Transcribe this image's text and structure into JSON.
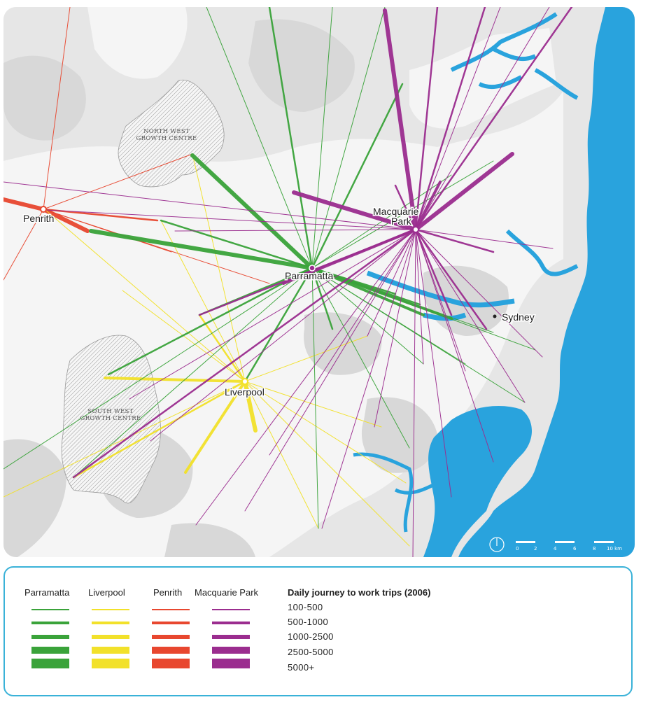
{
  "colors": {
    "parramatta": "#3aa33a",
    "liverpool": "#f2e12a",
    "penrith": "#e8472f",
    "macquarie_park": "#9b2d8f",
    "water": "#29a3dd",
    "land": "#f4f4f4",
    "urban": "#d9d9d9",
    "legend_border": "#3ab2d8"
  },
  "map": {
    "labels": {
      "penrith": "Penrith",
      "parramatta": "Parramatta",
      "liverpool": "Liverpool",
      "macquarie_line1": "Macquarie",
      "macquarie_line2": "Park",
      "sydney": "Sydney"
    },
    "zones": {
      "north_west_line1": "NORTH WEST",
      "north_west_line2": "GROWTH CENTRE",
      "south_west_line1": "SOUTH WEST",
      "south_west_line2": "GROWTH CENTRE"
    },
    "scale_bar": {
      "ticks": [
        "0",
        "2",
        "4",
        "6",
        "8",
        "10 km"
      ],
      "north_icon": "north-arrow-icon"
    }
  },
  "legend": {
    "centres": [
      "Parramatta",
      "Liverpool",
      "Penrith",
      "Macquarie Park"
    ],
    "title": "Daily journey to work trips (2006)",
    "ranges": [
      "100-500",
      "500-1000",
      "1000-2500",
      "2500-5000",
      "5000+"
    ]
  }
}
